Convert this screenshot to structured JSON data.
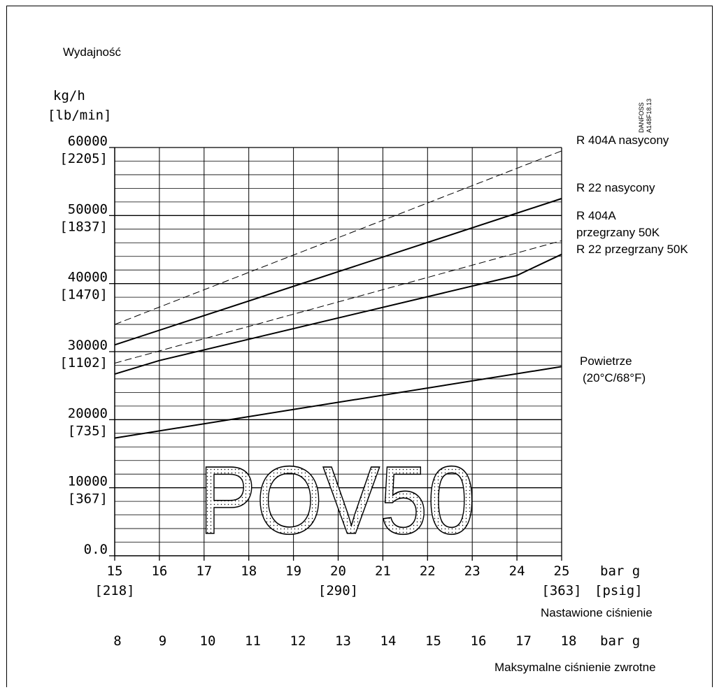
{
  "chart_data": {
    "type": "line",
    "title": "Wydajność",
    "y_unit_primary": "kg/h",
    "y_unit_secondary": "[lb/min]",
    "watermark_code_1": "DANFOSS",
    "watermark_code_2": "A148F18.13",
    "big_label": "POV50",
    "xlim": [
      15,
      25
    ],
    "ylim": [
      0,
      60000
    ],
    "grid": true,
    "y_ticks": [
      {
        "value": 60000,
        "label": "60000",
        "sub": "[2205]"
      },
      {
        "value": 50000,
        "label": "50000",
        "sub": "[1837]"
      },
      {
        "value": 40000,
        "label": "40000",
        "sub": "[1470]"
      },
      {
        "value": 30000,
        "label": "30000",
        "sub": "[1102]"
      },
      {
        "value": 20000,
        "label": "20000",
        "sub": "[735]"
      },
      {
        "value": 10000,
        "label": "10000",
        "sub": "[367]"
      },
      {
        "value": 0,
        "label": "0.0",
        "sub": ""
      }
    ],
    "x_ticks": [
      "15",
      "16",
      "17",
      "18",
      "19",
      "20",
      "21",
      "22",
      "23",
      "24",
      "25"
    ],
    "x_unit": "bar g",
    "x_sub_ticks": [
      {
        "x": 15,
        "label": "[218]"
      },
      {
        "x": 20,
        "label": "[290]"
      },
      {
        "x": 25,
        "label": "[363]"
      }
    ],
    "x_sub_unit": "[psig]",
    "xlabel": "Nastawione ciśnienie",
    "x2_ticks": [
      "8",
      "9",
      "10",
      "11",
      "12",
      "13",
      "14",
      "15",
      "16",
      "17",
      "18"
    ],
    "x2_unit": "bar g",
    "x2label": "Maksymalne ciśnienie zwrotne",
    "series": [
      {
        "name": "R 404A nasycony",
        "style": "dashed",
        "x": [
          15,
          25
        ],
        "y": [
          34000,
          59500
        ]
      },
      {
        "name": "R 22 nasycony",
        "style": "solid",
        "x": [
          15,
          25
        ],
        "y": [
          31000,
          52500
        ]
      },
      {
        "name": "R 404A przegrzany 50K",
        "style": "dashed",
        "x": [
          15,
          25
        ],
        "y": [
          28300,
          46300
        ]
      },
      {
        "name": "R 22 przegrzany 50K",
        "style": "solid",
        "x": [
          15,
          16,
          24,
          25
        ],
        "y": [
          26700,
          28700,
          41200,
          44300
        ]
      },
      {
        "name": "Powietrze",
        "name_line2": "(20°C/68°F)",
        "style": "solid",
        "x": [
          15,
          25
        ],
        "y": [
          17300,
          27800
        ]
      }
    ]
  }
}
